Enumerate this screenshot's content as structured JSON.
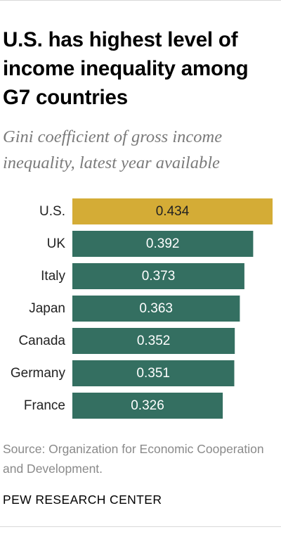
{
  "header": {
    "title": "U.S. has highest level of income inequality among G7 countries",
    "subtitle": "Gini coefficient of gross income inequality, latest year available"
  },
  "footer": {
    "source": "Source: Organization for Economic Cooperation and Development.",
    "brand": "PEW RESEARCH CENTER"
  },
  "colors": {
    "highlight": "#D4AC36",
    "bar": "#346F61",
    "highlight_label": "#222222",
    "bar_label": "#FFFFFF",
    "category_label": "#222222"
  },
  "chart_data": {
    "type": "bar",
    "orientation": "horizontal",
    "title": "",
    "xlabel": "",
    "ylabel": "",
    "categories": [
      "U.S.",
      "UK",
      "Italy",
      "Japan",
      "Canada",
      "Germany",
      "France"
    ],
    "values": [
      0.434,
      0.392,
      0.373,
      0.363,
      0.352,
      0.351,
      0.326
    ],
    "labels": [
      "0.434",
      "0.392",
      "0.373",
      "0.363",
      "0.352",
      "0.351",
      "0.326"
    ],
    "highlight_index": 0,
    "xlim": [
      0,
      0.434
    ],
    "grid": false,
    "legend": "none"
  }
}
